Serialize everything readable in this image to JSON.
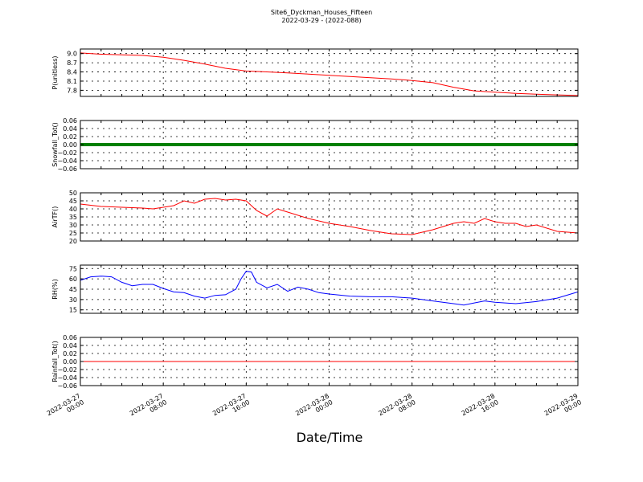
{
  "title": "Site6_Dyckman_Houses_Fifteen",
  "subtitle": "2022-03-29 - (2022-088)",
  "xlabel": "Date/Time",
  "x_ticks": [
    "2022-03-27\n00:00",
    "2022-03-27\n08:00",
    "2022-03-27\n16:00",
    "2022-03-28\n00:00",
    "2022-03-28\n08:00",
    "2022-03-28\n16:00",
    "2022-03-29\n00:00"
  ],
  "colors": {
    "pressure": "#ff0000",
    "snowfall": "#008000",
    "airtemp": "#ff0000",
    "rh": "#0000ff",
    "rainfall": "#ff0000"
  },
  "chart_data": [
    {
      "type": "line",
      "ylabel": "P(unitless)",
      "ylim": [
        7.6,
        9.15
      ],
      "yticks": [
        "9.0",
        "8.7",
        "8.4",
        "8.1",
        "7.8"
      ],
      "ytick_values": [
        9.0,
        8.7,
        8.4,
        8.1,
        7.8
      ],
      "grid": true,
      "x_hours": [
        0,
        2,
        4,
        6,
        8,
        10,
        12,
        14,
        16,
        18,
        20,
        22,
        24,
        26,
        28,
        30,
        32,
        34,
        36,
        38,
        40,
        42,
        44,
        46,
        48
      ],
      "values": [
        9.02,
        8.98,
        8.96,
        8.94,
        8.88,
        8.78,
        8.66,
        8.52,
        8.43,
        8.4,
        8.37,
        8.33,
        8.29,
        8.25,
        8.21,
        8.17,
        8.12,
        8.05,
        7.9,
        7.78,
        7.74,
        7.7,
        7.67,
        7.65,
        7.63
      ]
    },
    {
      "type": "line",
      "ylabel": "Snowfall_Tot()",
      "ylim": [
        -0.06,
        0.06
      ],
      "yticks": [
        "0.06",
        "0.04",
        "0.02",
        "0.00",
        "−0.02",
        "−0.04",
        "−0.06"
      ],
      "ytick_values": [
        0.06,
        0.04,
        0.02,
        0.0,
        -0.02,
        -0.04,
        -0.06
      ],
      "grid": true,
      "x_hours": [
        0,
        48
      ],
      "values": [
        0.0,
        0.0
      ]
    },
    {
      "type": "line",
      "ylabel": "AirTF()",
      "ylim": [
        20,
        50
      ],
      "yticks": [
        "50",
        "45",
        "40",
        "35",
        "30",
        "25",
        "20"
      ],
      "ytick_values": [
        50,
        45,
        40,
        35,
        30,
        25,
        20
      ],
      "grid": true,
      "x_hours": [
        0,
        2,
        4,
        6,
        7,
        8,
        9,
        10,
        11,
        12,
        13,
        14,
        15,
        16,
        16.5,
        17,
        18,
        19,
        20,
        22,
        24,
        26,
        28,
        30,
        32,
        34,
        35,
        36,
        37,
        38,
        39,
        40,
        41,
        42,
        43,
        44,
        46,
        48
      ],
      "values": [
        43,
        41.5,
        41,
        40.5,
        40,
        41,
        42,
        45,
        43.5,
        46,
        46.5,
        45.5,
        46,
        45,
        42,
        39,
        35.5,
        40,
        38,
        34,
        31,
        29,
        26.5,
        24.5,
        24,
        27,
        29,
        31,
        32,
        31,
        34,
        32,
        31,
        31,
        29,
        30,
        26,
        25
      ]
    },
    {
      "type": "line",
      "ylabel": "RH(%)",
      "ylim": [
        10,
        80
      ],
      "yticks": [
        "75",
        "60",
        "45",
        "30",
        "15"
      ],
      "ytick_values": [
        75,
        60,
        45,
        30,
        15
      ],
      "grid": true,
      "x_hours": [
        0,
        1,
        2,
        3,
        4,
        5,
        6,
        7,
        8,
        9,
        10,
        11,
        12,
        13,
        14,
        15,
        15.5,
        16,
        16.5,
        17,
        18,
        19,
        20,
        21,
        22,
        23,
        24,
        26,
        28,
        30,
        32,
        34,
        36,
        37,
        38,
        39,
        40,
        41,
        42,
        44,
        46,
        48
      ],
      "values": [
        58,
        63,
        64,
        63,
        55,
        50,
        52,
        52,
        46,
        41,
        40,
        35,
        32,
        36,
        37,
        45,
        60,
        71,
        70,
        55,
        47,
        52,
        42,
        48,
        45,
        40,
        38,
        35,
        34,
        34,
        32,
        28,
        24,
        22,
        25,
        28,
        26,
        25,
        24,
        27,
        32,
        41
      ]
    },
    {
      "type": "line",
      "ylabel": "Rainfall_Tot()",
      "ylim": [
        -0.06,
        0.06
      ],
      "yticks": [
        "0.06",
        "0.04",
        "0.02",
        "0.00",
        "−0.02",
        "−0.04",
        "−0.06"
      ],
      "ytick_values": [
        0.06,
        0.04,
        0.02,
        0.0,
        -0.02,
        -0.04,
        -0.06
      ],
      "grid": true,
      "x_hours": [
        0,
        48
      ],
      "values": [
        0.0,
        0.0
      ]
    }
  ]
}
